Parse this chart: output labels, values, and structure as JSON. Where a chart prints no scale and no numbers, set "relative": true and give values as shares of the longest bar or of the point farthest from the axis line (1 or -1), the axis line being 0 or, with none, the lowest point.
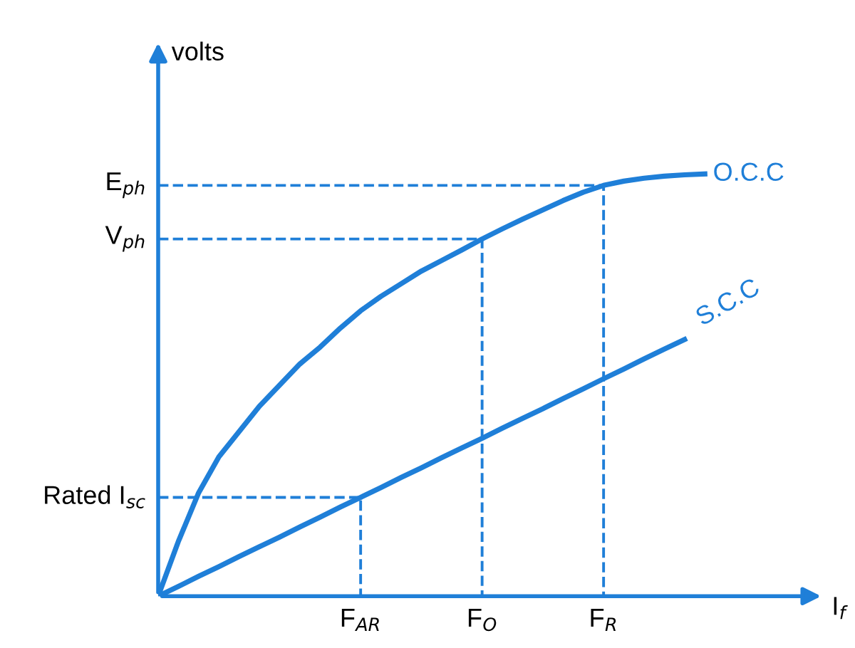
{
  "chart_data": {
    "type": "line",
    "relative": true,
    "xlabel": "I$_{f}$",
    "ylabel": "volts",
    "categories": [
      null,
      null,
      null,
      null,
      null,
      null,
      null,
      null,
      null,
      null,
      "F$_{AR}$",
      null,
      null,
      null,
      null,
      null,
      "F$_{O}$",
      null,
      null,
      null,
      null,
      null,
      "F$_{R}$",
      null,
      null,
      null,
      null,
      null
    ],
    "series": [
      {
        "name": "O.C.C",
        "color": "#1f7fd8",
        "values": [
          0,
          0.13,
          0.245,
          0.33,
          0.39,
          0.45,
          0.5,
          0.55,
          0.59,
          0.635,
          0.676,
          0.71,
          0.74,
          0.77,
          0.795,
          0.82,
          0.846,
          0.87,
          0.893,
          0.915,
          0.937,
          0.957,
          0.973,
          0.983,
          0.99,
          0.995,
          0.998,
          1
        ]
      },
      {
        "name": "S.C.C",
        "color": "#1f7fd8",
        "values": [
          0,
          0.023,
          0.047,
          0.07,
          0.094,
          0.117,
          0.14,
          0.164,
          0.187,
          0.211,
          0.234,
          0.257,
          0.281,
          0.304,
          0.328,
          0.351,
          0.374,
          0.398,
          0.421,
          0.444,
          0.468,
          0.491,
          0.515,
          0.538,
          0.562,
          0.585,
          0.608,
          null
        ]
      },
      {
        "type": "step",
        "color": "#1f7fd8",
        "line_style": "dashed",
        "values": [
          0.973,
          0.973,
          0.973,
          0.973,
          0.973,
          0.973,
          0.973,
          0.973,
          0.973,
          0.973,
          0.973,
          0.973,
          0.973,
          0.973,
          0.973,
          0.973,
          0.973,
          0.973,
          0.973,
          0.973,
          0.973,
          0.973,
          0,
          null,
          null,
          null,
          null,
          null
        ]
      },
      {
        "type": "step",
        "color": "#1f7fd8",
        "line_style": "dashed",
        "values": [
          0.846,
          0.846,
          0.846,
          0.846,
          0.846,
          0.846,
          0.846,
          0.846,
          0.846,
          0.846,
          0.846,
          0.846,
          0.846,
          0.846,
          0.846,
          0.846,
          0,
          null,
          null,
          null,
          null,
          null,
          null,
          null,
          null,
          null,
          null,
          null
        ]
      },
      {
        "type": "step",
        "color": "#1f7fd8",
        "line_style": "dashed",
        "values": [
          0.234,
          0.234,
          0.234,
          0.234,
          0.234,
          0.234,
          0.234,
          0.234,
          0.234,
          0.234,
          0,
          null,
          null,
          null,
          null,
          null,
          null,
          null,
          null,
          null,
          null,
          null,
          null,
          null,
          null,
          null,
          null,
          null
        ]
      }
    ],
    "annotations": [
      "E$_{ph}$",
      "V$_{ph}$",
      "Rated I$_{sc}$"
    ]
  }
}
